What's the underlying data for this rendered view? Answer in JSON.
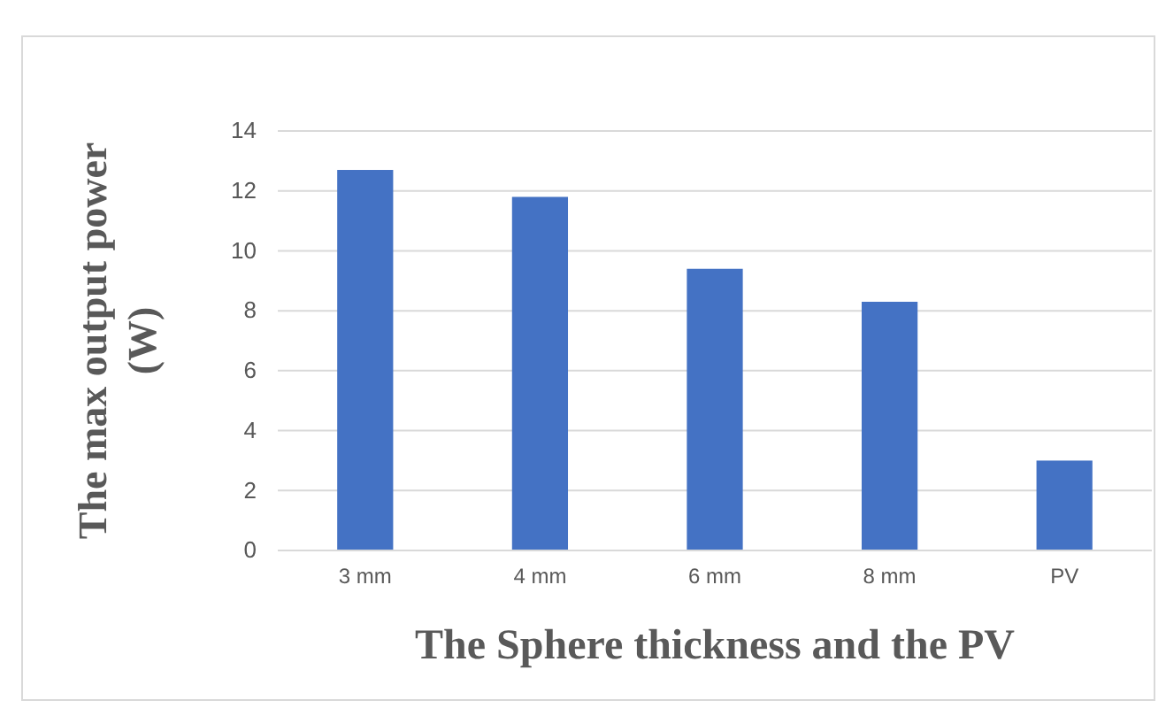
{
  "chart_data": {
    "type": "bar",
    "xlabel": "The Sphere thickness and the PV",
    "ylabel": "The max output power (W)",
    "categories": [
      "3 mm",
      "4 mm",
      "6 mm",
      "8 mm",
      "PV"
    ],
    "values": [
      12.7,
      11.8,
      9.4,
      8.3,
      3.0
    ],
    "color": "#4472c4",
    "ylim": [
      0,
      14
    ],
    "yticks": [
      0,
      2,
      4,
      6,
      8,
      10,
      12,
      14
    ],
    "grid": "y"
  }
}
